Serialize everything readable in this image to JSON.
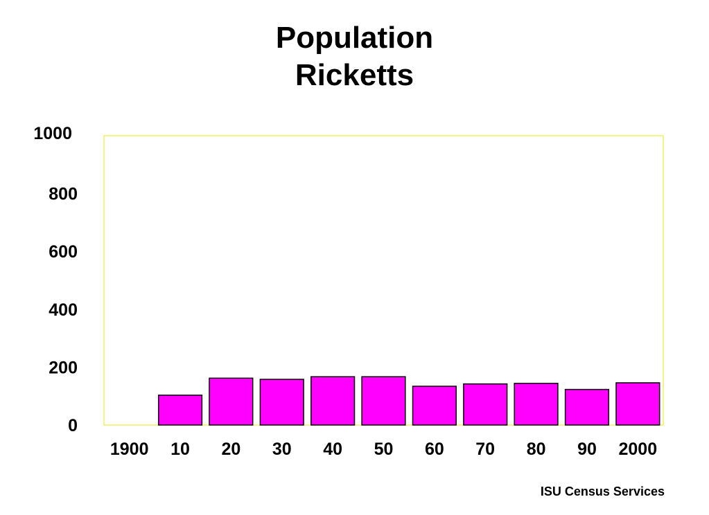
{
  "chart_data": {
    "type": "bar",
    "title": [
      "Population",
      "Ricketts"
    ],
    "categories": [
      "1900",
      "10",
      "20",
      "30",
      "40",
      "50",
      "60",
      "70",
      "80",
      "90",
      "2000"
    ],
    "values": [
      0,
      103,
      162,
      158,
      167,
      167,
      134,
      142,
      144,
      123,
      146
    ],
    "ylim": [
      0,
      1000
    ],
    "yticks": [
      0,
      200,
      400,
      600,
      800,
      1000
    ],
    "grid": false,
    "bar_color": "#ff00ff",
    "frame_color": "#f0f060"
  },
  "footer": {
    "credit": "ISU Census Services"
  }
}
